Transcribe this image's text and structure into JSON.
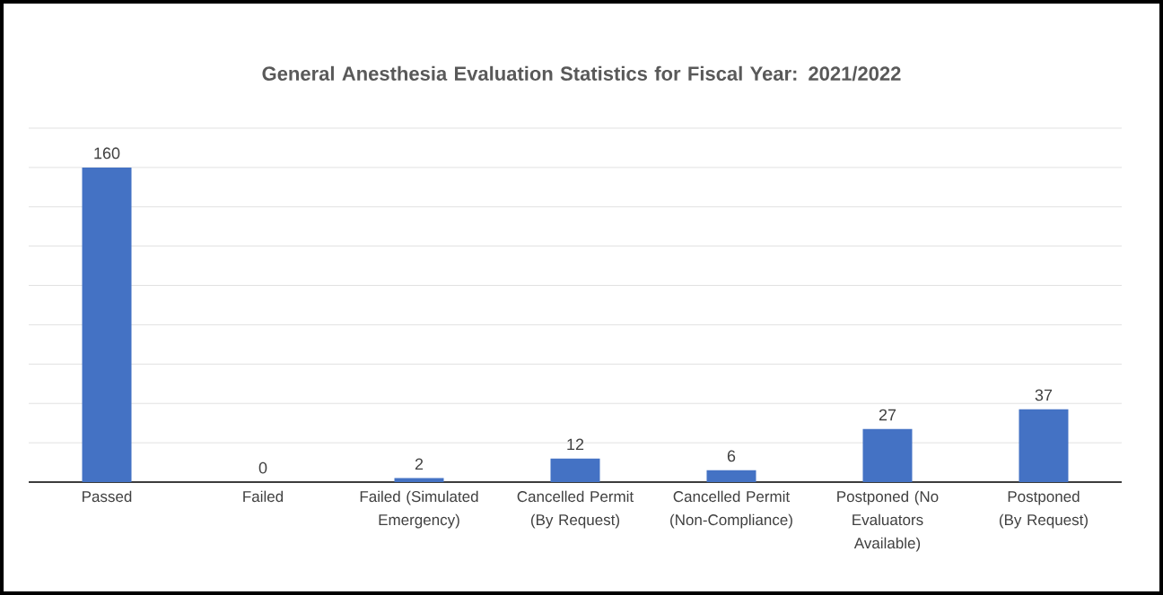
{
  "chart_data": {
    "type": "bar",
    "title": "General Anesthesia Evaluation Statistics for Fiscal Year: 2021/2022",
    "categories": [
      "Passed",
      "Failed",
      "Failed (Simulated Emergency)",
      "Cancelled Permit (By Request)",
      "Cancelled Permit (Non-Compliance)",
      "Postponed (No Evaluators Available)",
      "Postponed (By Request)"
    ],
    "values": [
      160,
      0,
      2,
      12,
      6,
      27,
      37
    ],
    "color": "#4472c4",
    "data_labels": true,
    "grid": "y",
    "tick_labels": "x"
  }
}
